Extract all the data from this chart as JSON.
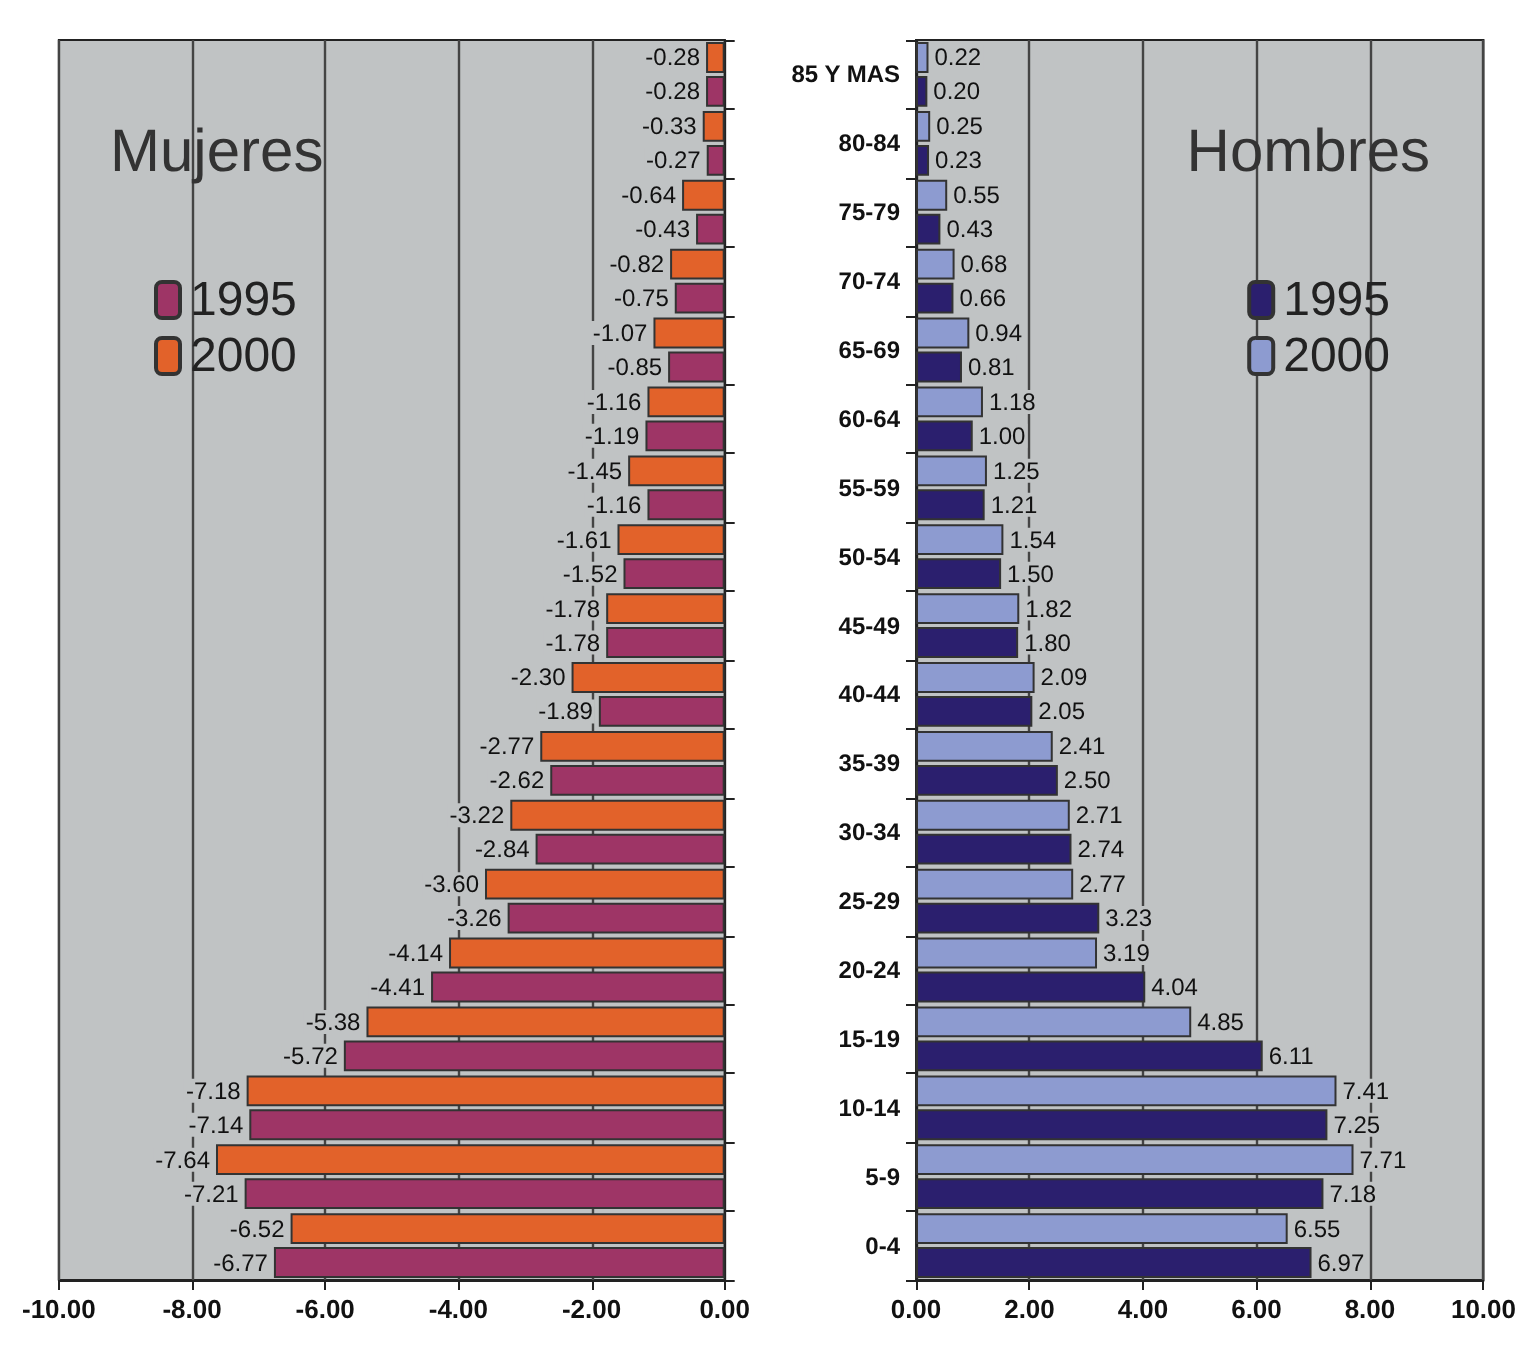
{
  "chart_data": [
    {
      "type": "bar",
      "orientation": "horizontal",
      "title": "Mujeres",
      "categories": [
        null,
        null,
        null,
        null,
        null,
        null,
        null,
        null,
        null,
        null,
        null,
        null,
        null,
        null,
        null,
        null,
        null,
        null
      ],
      "series": [
        {
          "name": "1995",
          "color": "#9e3566",
          "values": [
            -0.28,
            -0.27,
            -0.43,
            -0.75,
            -0.85,
            -1.19,
            -1.16,
            -1.52,
            -1.78,
            -1.89,
            -2.62,
            -2.84,
            -3.26,
            -4.41,
            -5.72,
            -7.14,
            -7.21,
            -6.77
          ],
          "value_labels": [
            "-0.28",
            "-0.27",
            "-0.43",
            "-0.75",
            "-0.85",
            "-1.19",
            "-1.16",
            "-1.52",
            "-1.78",
            "-1.89",
            "-2.62",
            "-2.84",
            "-3.26",
            "-4.41",
            "-5.72",
            "-7.14",
            "-7.21",
            "-6.77"
          ]
        },
        {
          "name": "2000",
          "color": "#e2622a",
          "values": [
            -0.28,
            -0.33,
            -0.64,
            -0.82,
            -1.07,
            -1.16,
            -1.45,
            -1.61,
            -1.78,
            -2.3,
            -2.77,
            -3.22,
            -3.6,
            -4.14,
            -5.38,
            -7.18,
            -7.64,
            -6.52
          ],
          "value_labels": [
            "-0.28",
            "-0.33",
            "-0.64",
            "-0.82",
            "-1.07",
            "-1.16",
            "-1.45",
            "-1.61",
            "-1.78",
            "-2.30",
            "-2.77",
            "-3.22",
            "-3.60",
            "-4.14",
            "-5.38",
            "-7.18",
            "-7.64",
            "-6.52"
          ]
        }
      ],
      "xlim": [
        -10,
        0
      ],
      "xticks": [
        {
          "value": -10,
          "label": "-10.00"
        },
        {
          "value": -8,
          "label": "-8.00"
        },
        {
          "value": -6,
          "label": "-6.00"
        },
        {
          "value": -4,
          "label": "-4.00"
        },
        {
          "value": -2,
          "label": "-2.00"
        },
        {
          "value": 0,
          "label": "0.00"
        }
      ],
      "grid": "x",
      "legend": "top left",
      "tick_labels": "x"
    },
    {
      "type": "bar",
      "orientation": "horizontal",
      "title": "Hombres",
      "categories": [
        "85 Y MAS",
        "80-84",
        "75-79",
        "70-74",
        "65-69",
        "60-64",
        "55-59",
        "50-54",
        "45-49",
        "40-44",
        "35-39",
        "30-34",
        "25-29",
        "20-24",
        "15-19",
        "10-14",
        "5-9",
        "0-4"
      ],
      "series": [
        {
          "name": "1995",
          "color": "#2b1f6e",
          "values": [
            0.2,
            0.23,
            0.43,
            0.66,
            0.81,
            1.0,
            1.21,
            1.5,
            1.8,
            2.05,
            2.5,
            2.74,
            3.23,
            4.04,
            6.11,
            7.25,
            7.18,
            6.97
          ],
          "value_labels": [
            "0.20",
            "0.23",
            "0.43",
            "0.66",
            "0.81",
            "1.00",
            "1.21",
            "1.50",
            "1.80",
            "2.05",
            "2.50",
            "2.74",
            "3.23",
            "4.04",
            "6.11",
            "7.25",
            "7.18",
            "6.97"
          ]
        },
        {
          "name": "2000",
          "color": "#8d9bd0",
          "values": [
            0.22,
            0.25,
            0.55,
            0.68,
            0.94,
            1.18,
            1.25,
            1.54,
            1.82,
            2.09,
            2.41,
            2.71,
            2.77,
            3.19,
            4.85,
            7.41,
            7.71,
            6.55
          ],
          "value_labels": [
            "0.22",
            "0.25",
            "0.55",
            "0.68",
            "0.94",
            "1.18",
            "1.25",
            "1.54",
            "1.82",
            "2.09",
            "2.41",
            "2.71",
            "2.77",
            "3.19",
            "4.85",
            "7.41",
            "7.71",
            "6.55"
          ]
        }
      ],
      "xlim": [
        0,
        10
      ],
      "xticks": [
        {
          "value": 0,
          "label": "0.00"
        },
        {
          "value": 2,
          "label": "2.00"
        },
        {
          "value": 4,
          "label": "4.00"
        },
        {
          "value": 6,
          "label": "6.00"
        },
        {
          "value": 8,
          "label": "8.00"
        },
        {
          "value": 10,
          "label": "10.00"
        }
      ],
      "grid": "x",
      "legend": "top right"
    }
  ]
}
